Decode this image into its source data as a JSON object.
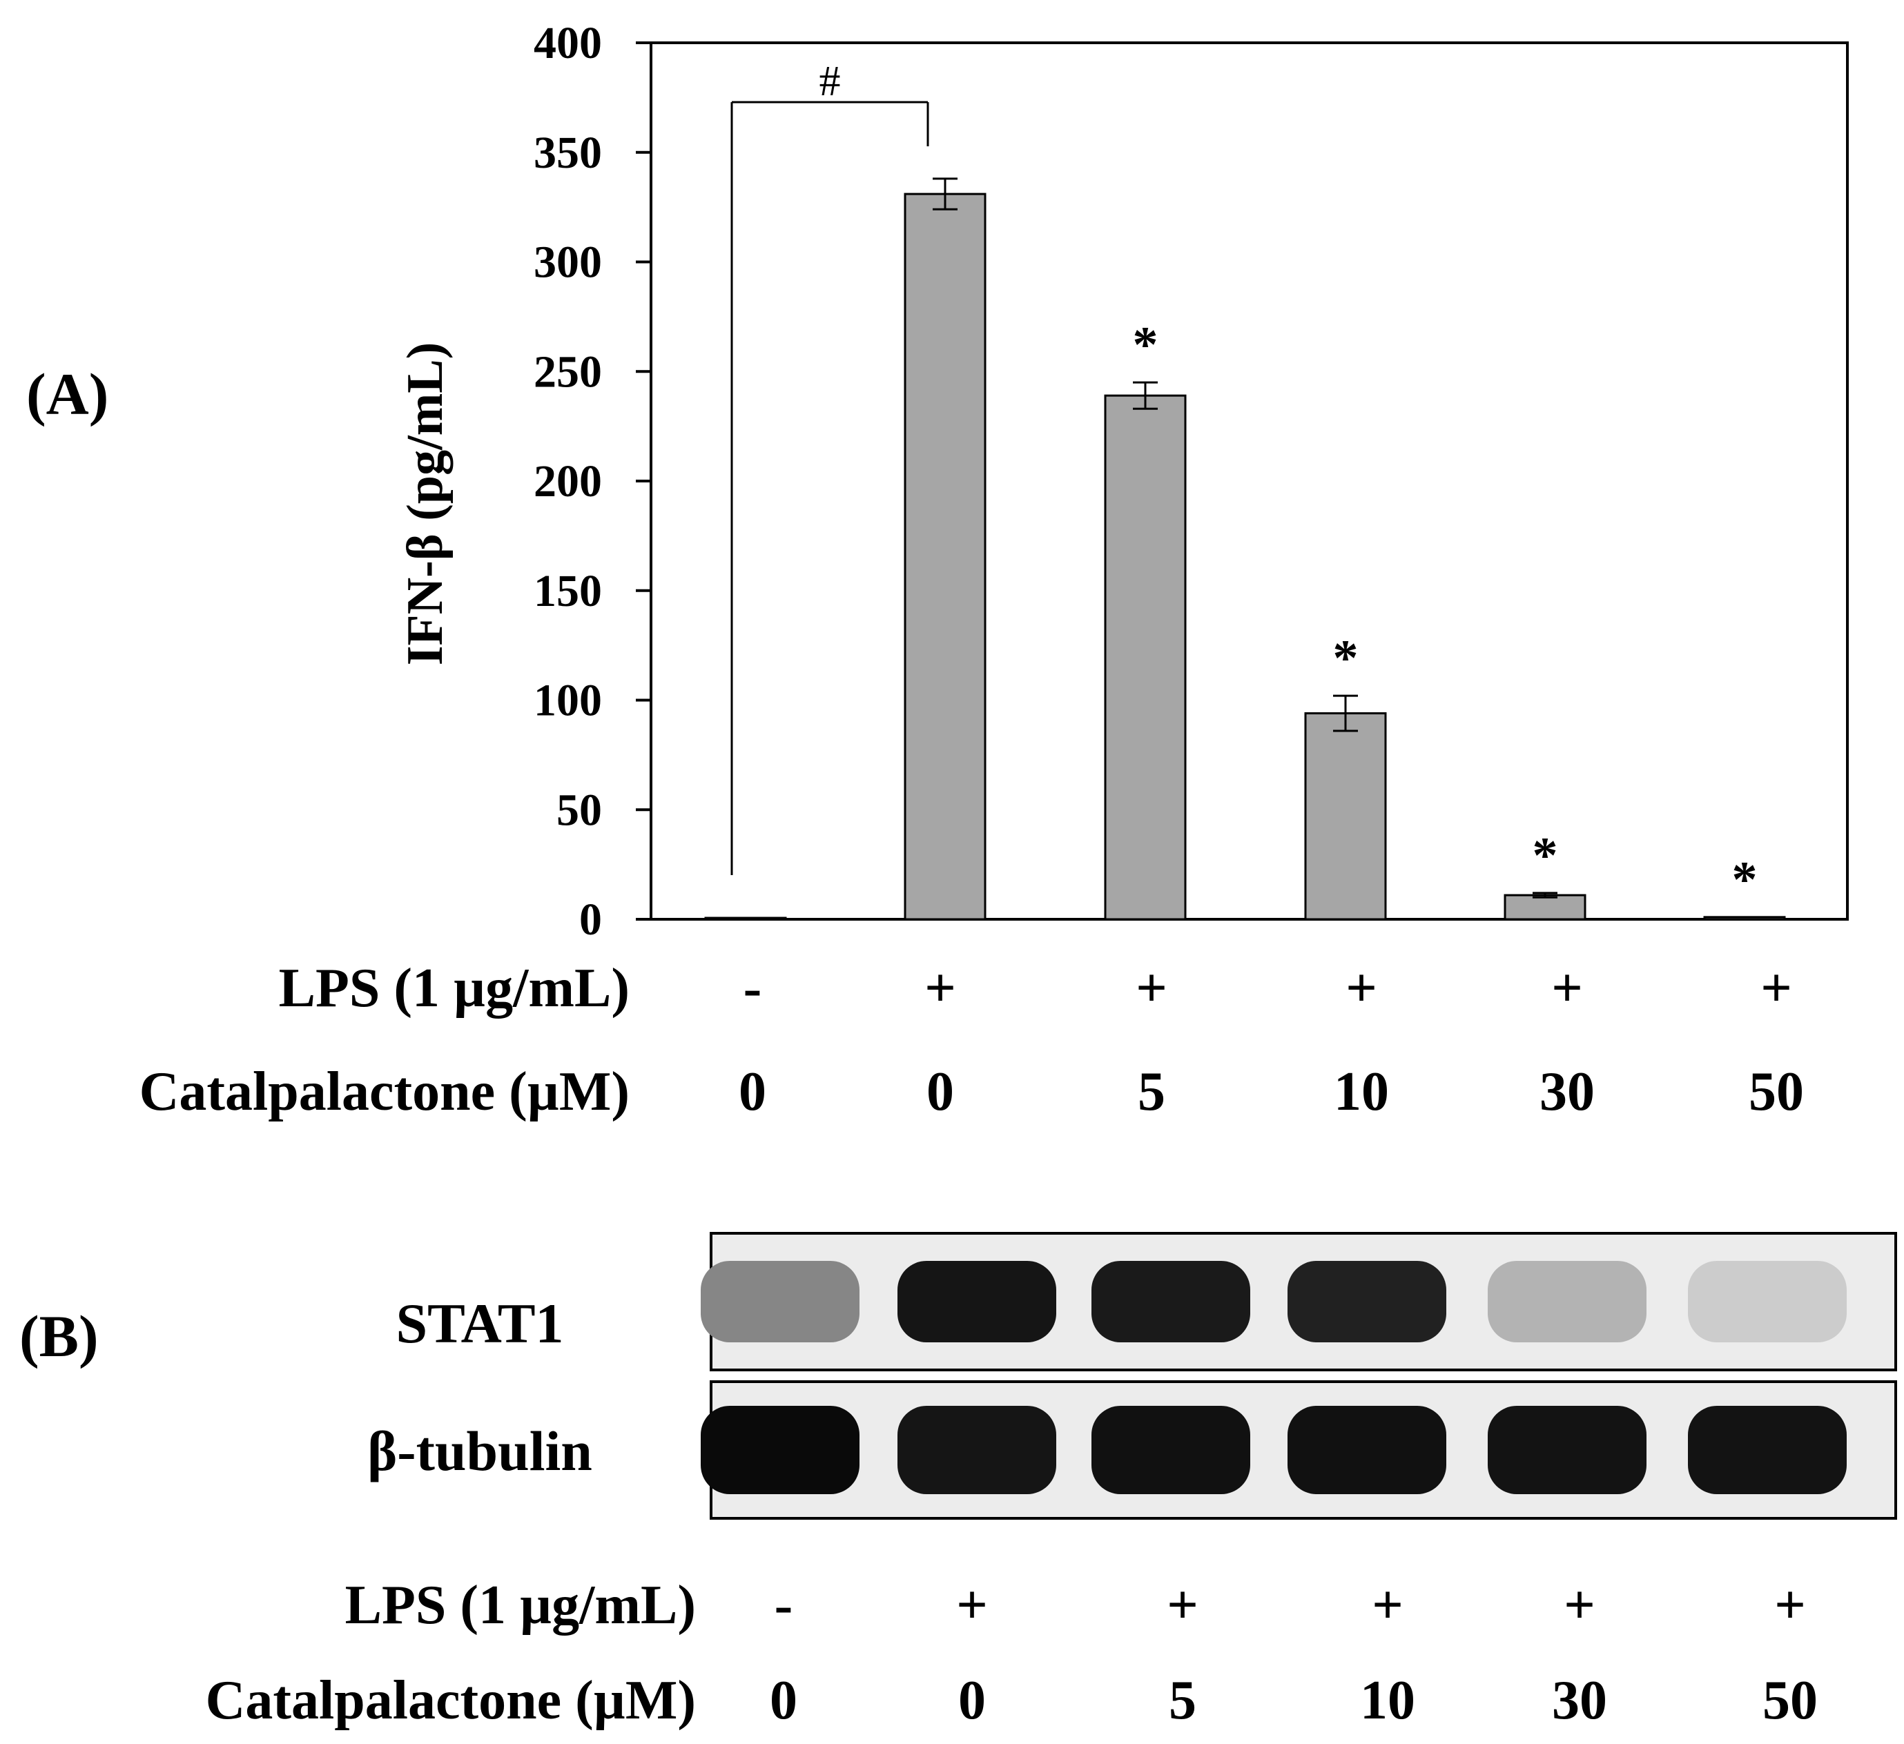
{
  "panel_a": {
    "label": "(A)",
    "conditions": [
      {
        "label": "LPS (1 µg/mL)",
        "values": [
          "-",
          "+",
          "+",
          "+",
          "+",
          "+"
        ]
      },
      {
        "label": "Catalpalactone (µM)",
        "values": [
          "0",
          "0",
          "5",
          "10",
          "30",
          "50"
        ]
      }
    ]
  },
  "panel_b": {
    "label": "(B)",
    "blots": [
      {
        "name": "STAT1",
        "intensities": [
          0.45,
          0.95,
          0.93,
          0.9,
          0.25,
          0.14
        ]
      },
      {
        "name": "β-tubulin",
        "intensities": [
          1.0,
          0.95,
          0.97,
          0.97,
          0.96,
          0.96
        ]
      }
    ],
    "conditions": [
      {
        "label": "LPS (1 µg/mL)",
        "values": [
          "-",
          "+",
          "+",
          "+",
          "+",
          "+"
        ]
      },
      {
        "label": "Catalpalactone (µM)",
        "values": [
          "0",
          "0",
          "5",
          "10",
          "30",
          "50"
        ]
      }
    ]
  },
  "chart_data": {
    "type": "bar",
    "title": "",
    "xlabel": "",
    "ylabel": "IFN-β (pg/mL)",
    "ylim": [
      0,
      400
    ],
    "yticks": [
      "0",
      "50",
      "100",
      "150",
      "200",
      "250",
      "300",
      "350",
      "400"
    ],
    "values": [
      0.5,
      331,
      239,
      94,
      11,
      1
    ],
    "errors": [
      0,
      7,
      6,
      8,
      1,
      0
    ],
    "significance": [
      "",
      "",
      "*",
      "*",
      "*",
      "*"
    ],
    "bracket": {
      "from": 0,
      "to": 1,
      "label": "#"
    },
    "bar_color": "#a6a6a6",
    "grid": false
  }
}
